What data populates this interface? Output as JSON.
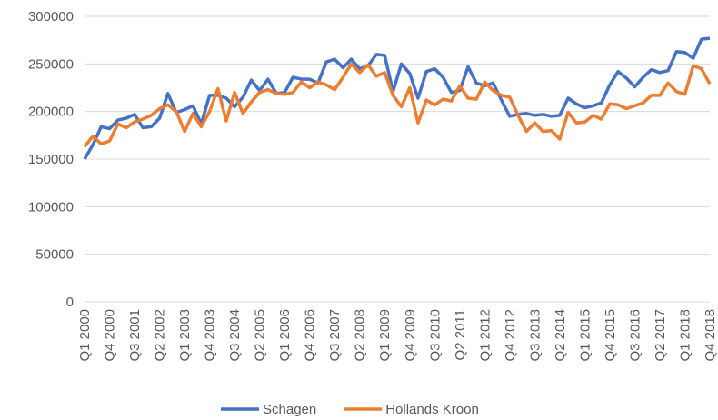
{
  "chart_data": {
    "type": "line",
    "categories": [
      "Q1 2000",
      null,
      null,
      "Q4 2000",
      null,
      null,
      "Q3 2001",
      null,
      null,
      "Q2 2002",
      null,
      null,
      "Q1 2003",
      null,
      null,
      "Q4 2003",
      null,
      null,
      "Q3 2004",
      null,
      null,
      "Q2 2005",
      null,
      null,
      "Q1 2006",
      null,
      null,
      "Q4 2006",
      null,
      null,
      "Q3 2007",
      null,
      null,
      "Q2 2008",
      null,
      null,
      "Q1 2009",
      null,
      null,
      "Q4 2009",
      null,
      null,
      "Q3 2010",
      null,
      null,
      "Q2 2011",
      null,
      null,
      "Q1 2012",
      null,
      null,
      "Q4 2012",
      null,
      null,
      "Q3 2013",
      null,
      null,
      "Q2 2014",
      null,
      null,
      "Q1 2015",
      null,
      null,
      "Q4 2015",
      null,
      null,
      "Q3 2016",
      null,
      null,
      "Q2 2017",
      null,
      null,
      "Q1 2018",
      null,
      null,
      "Q4 2018"
    ],
    "series": [
      {
        "name": "Schagen",
        "color": "#4472c4",
        "values": [
          150000,
          165000,
          184000,
          182000,
          191000,
          193000,
          197000,
          183000,
          184000,
          193000,
          219000,
          199000,
          202000,
          206000,
          187000,
          217000,
          217000,
          214000,
          205000,
          215000,
          233000,
          222000,
          234000,
          219000,
          220000,
          236000,
          234000,
          234000,
          230000,
          252000,
          255000,
          246000,
          255000,
          245000,
          248000,
          260000,
          259000,
          221000,
          250000,
          240000,
          214000,
          242000,
          245000,
          236000,
          220000,
          222000,
          247000,
          230000,
          227000,
          230000,
          212000,
          195000,
          197000,
          198000,
          196000,
          197000,
          195000,
          196000,
          214000,
          208000,
          204000,
          206000,
          209000,
          228000,
          242000,
          235000,
          226000,
          236000,
          244000,
          241000,
          243000,
          263000,
          262000,
          256000,
          276000,
          277000
        ]
      },
      {
        "name": "Hollands Kroon",
        "color": "#ed7d31",
        "values": [
          163000,
          174000,
          166000,
          169000,
          187000,
          183000,
          189000,
          192000,
          196000,
          203000,
          207000,
          200000,
          179000,
          198000,
          184000,
          200000,
          224000,
          190000,
          220000,
          198000,
          210000,
          220000,
          223000,
          219000,
          218000,
          220000,
          231000,
          225000,
          231000,
          228000,
          223000,
          236000,
          250000,
          241000,
          249000,
          237000,
          241000,
          217000,
          205000,
          225000,
          188000,
          212000,
          207000,
          213000,
          211000,
          227000,
          214000,
          213000,
          231000,
          222000,
          217000,
          215000,
          196000,
          179000,
          188000,
          179000,
          180000,
          171000,
          199000,
          188000,
          189000,
          196000,
          192000,
          208000,
          207000,
          203000,
          206000,
          209000,
          217000,
          217000,
          230000,
          221000,
          218000,
          248000,
          245000,
          229000
        ]
      }
    ],
    "ylim": [
      0,
      300000
    ],
    "yticks": [
      0,
      50000,
      100000,
      150000,
      200000,
      250000,
      300000
    ],
    "grid": true,
    "legend": "bottom"
  }
}
